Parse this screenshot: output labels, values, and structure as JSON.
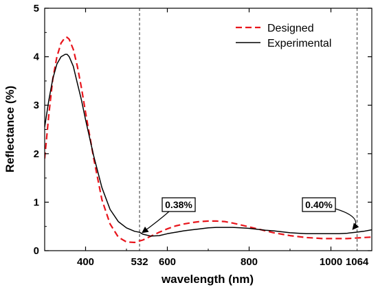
{
  "chart_data": {
    "type": "line",
    "xlabel": "wavelength (nm)",
    "ylabel": "Reflectance (%)",
    "xlim": [
      300,
      1100
    ],
    "ylim": [
      0,
      5
    ],
    "x_ticks": [
      400,
      600,
      800,
      1000
    ],
    "y_ticks": [
      0,
      1,
      2,
      3,
      4,
      5
    ],
    "grid": false,
    "legend_position": "top-right",
    "vlines": [
      {
        "x": 532,
        "label": "532"
      },
      {
        "x": 1064,
        "label": "1064"
      }
    ],
    "annotations": [
      {
        "text": "0.38%",
        "x": 532,
        "y": 0.38
      },
      {
        "text": "0.40%",
        "x": 1064,
        "y": 0.4
      }
    ],
    "series": [
      {
        "name": "Designed",
        "color": "#e8141b",
        "style": "dashed",
        "x": [
          300,
          310,
          320,
          330,
          340,
          350,
          355,
          360,
          370,
          380,
          390,
          400,
          420,
          440,
          460,
          480,
          500,
          520,
          540,
          560,
          580,
          600,
          620,
          640,
          660,
          680,
          700,
          720,
          740,
          760,
          780,
          800,
          820,
          840,
          860,
          880,
          900,
          920,
          940,
          960,
          980,
          1000,
          1020,
          1040,
          1060,
          1080,
          1100
        ],
        "y": [
          1.9,
          2.8,
          3.55,
          4.0,
          4.28,
          4.4,
          4.4,
          4.36,
          4.15,
          3.8,
          3.35,
          2.85,
          1.9,
          1.05,
          0.55,
          0.28,
          0.18,
          0.17,
          0.22,
          0.3,
          0.38,
          0.45,
          0.51,
          0.55,
          0.58,
          0.6,
          0.61,
          0.61,
          0.6,
          0.57,
          0.53,
          0.49,
          0.45,
          0.41,
          0.37,
          0.34,
          0.31,
          0.29,
          0.27,
          0.26,
          0.25,
          0.25,
          0.25,
          0.25,
          0.26,
          0.27,
          0.28
        ]
      },
      {
        "name": "Experimental",
        "color": "#000000",
        "style": "solid",
        "x": [
          300,
          310,
          320,
          330,
          340,
          350,
          355,
          360,
          370,
          380,
          390,
          400,
          420,
          440,
          460,
          480,
          500,
          520,
          532,
          540,
          560,
          580,
          600,
          620,
          640,
          660,
          680,
          700,
          720,
          740,
          760,
          780,
          800,
          820,
          840,
          860,
          880,
          900,
          920,
          940,
          960,
          980,
          1000,
          1020,
          1040,
          1060,
          1080,
          1100
        ],
        "y": [
          2.55,
          3.1,
          3.55,
          3.85,
          4.0,
          4.05,
          4.05,
          4.0,
          3.8,
          3.45,
          3.1,
          2.7,
          1.95,
          1.3,
          0.85,
          0.6,
          0.47,
          0.4,
          0.38,
          0.34,
          0.3,
          0.31,
          0.35,
          0.38,
          0.41,
          0.43,
          0.45,
          0.47,
          0.48,
          0.48,
          0.48,
          0.47,
          0.46,
          0.44,
          0.42,
          0.41,
          0.39,
          0.37,
          0.36,
          0.35,
          0.35,
          0.35,
          0.35,
          0.35,
          0.36,
          0.38,
          0.4,
          0.43
        ]
      }
    ]
  }
}
